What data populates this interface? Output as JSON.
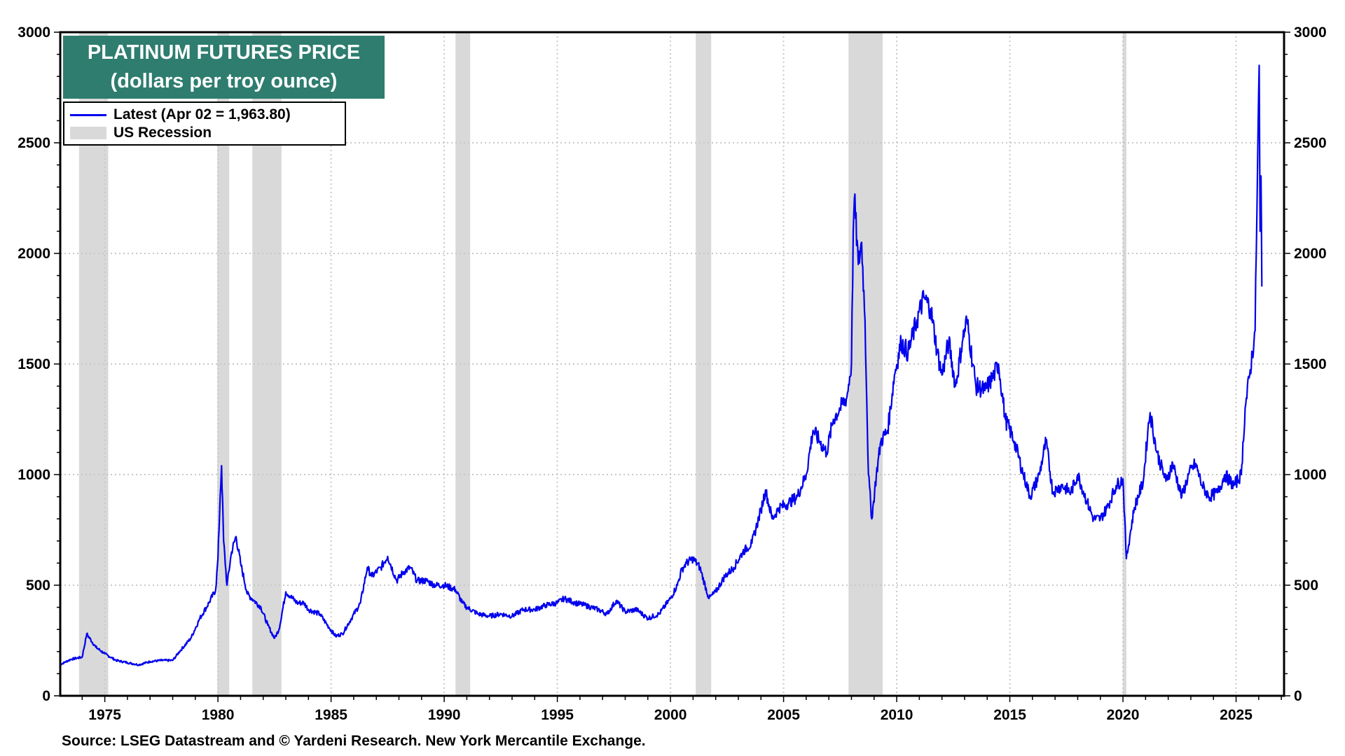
{
  "chart_data": {
    "type": "line",
    "title": "PLATINUM FUTURES PRICE",
    "subtitle": "(dollars per troy ounce)",
    "xlim": [
      1973.03,
      2027.12
    ],
    "ylim": [
      0,
      3000
    ],
    "x_ticks": [
      1975,
      1980,
      1985,
      1990,
      1995,
      2000,
      2005,
      2010,
      2015,
      2020,
      2025
    ],
    "y_ticks": [
      0,
      500,
      1000,
      1500,
      2000,
      2500,
      3000
    ],
    "grid": true,
    "y_axis_both_sides": true,
    "legend_placement": "top-left",
    "legend": [
      {
        "label": "Latest (Apr 02 = 1,963.80)",
        "color": "#0000ee",
        "kind": "line"
      },
      {
        "label": "US Recession",
        "color": "#d9d9d9",
        "kind": "shade"
      }
    ],
    "recessions": [
      [
        1973.86,
        1975.15
      ],
      [
        1979.97,
        1980.5
      ],
      [
        1981.52,
        1982.81
      ],
      [
        1990.5,
        1991.15
      ],
      [
        2001.12,
        2001.8
      ],
      [
        2007.87,
        2009.38
      ],
      [
        2019.99,
        2020.15
      ]
    ],
    "series": [
      {
        "color": "#0000ee",
        "x": [
          1973.0,
          1973.5,
          1974.0,
          1974.2,
          1974.6,
          1975.0,
          1975.5,
          1976.0,
          1976.5,
          1977.0,
          1977.5,
          1978.0,
          1978.3,
          1978.8,
          1979.2,
          1979.6,
          1979.9,
          1980.0,
          1980.1,
          1980.16,
          1980.25,
          1980.4,
          1980.6,
          1980.8,
          1981.0,
          1981.3,
          1981.6,
          1981.9,
          1982.2,
          1982.5,
          1982.7,
          1983.0,
          1983.2,
          1983.5,
          1983.8,
          1984.0,
          1984.5,
          1984.9,
          1985.2,
          1985.5,
          1985.9,
          1986.3,
          1986.6,
          1986.8,
          1987.2,
          1987.5,
          1987.9,
          1988.2,
          1988.5,
          1988.8,
          1989.2,
          1989.6,
          1990.0,
          1990.5,
          1990.8,
          1991.0,
          1991.5,
          1992.0,
          1992.5,
          1993.0,
          1993.5,
          1994.0,
          1994.5,
          1995.0,
          1995.3,
          1995.8,
          1996.2,
          1996.8,
          1997.2,
          1997.6,
          1998.0,
          1998.5,
          1999.0,
          1999.5,
          2000.0,
          2000.3,
          2000.5,
          2000.7,
          2001.0,
          2001.3,
          2001.7,
          2002.0,
          2002.4,
          2002.8,
          2003.2,
          2003.6,
          2004.0,
          2004.2,
          2004.5,
          2004.8,
          2005.2,
          2005.6,
          2006.0,
          2006.3,
          2006.6,
          2006.9,
          2007.2,
          2007.5,
          2007.8,
          2008.0,
          2008.08,
          2008.13,
          2008.3,
          2008.45,
          2008.6,
          2008.75,
          2008.9,
          2009.1,
          2009.3,
          2009.6,
          2009.9,
          2010.2,
          2010.5,
          2010.9,
          2011.2,
          2011.5,
          2011.8,
          2012.0,
          2012.3,
          2012.6,
          2012.9,
          2013.1,
          2013.5,
          2013.9,
          2014.3,
          2014.5,
          2014.8,
          2015.2,
          2015.6,
          2015.9,
          2016.3,
          2016.6,
          2016.9,
          2017.3,
          2017.7,
          2018.0,
          2018.4,
          2018.7,
          2019.0,
          2019.3,
          2019.7,
          2020.0,
          2020.15,
          2020.5,
          2020.9,
          2021.1,
          2021.2,
          2021.5,
          2021.9,
          2022.2,
          2022.6,
          2022.9,
          2023.2,
          2023.5,
          2023.8,
          2024.2,
          2024.5,
          2024.9,
          2025.23,
          2025.4,
          2025.6,
          2025.84,
          2025.95,
          2026.02,
          2026.06,
          2026.1,
          2026.14
        ],
        "y": [
          140,
          165,
          175,
          280,
          220,
          190,
          160,
          150,
          140,
          155,
          160,
          160,
          200,
          260,
          350,
          420,
          480,
          620,
          900,
          1040,
          700,
          500,
          650,
          720,
          600,
          460,
          430,
          400,
          320,
          260,
          300,
          470,
          450,
          420,
          420,
          390,
          370,
          310,
          270,
          280,
          350,
          420,
          580,
          540,
          580,
          630,
          520,
          560,
          580,
          520,
          520,
          500,
          500,
          480,
          420,
          400,
          370,
          360,
          370,
          360,
          390,
          390,
          410,
          420,
          440,
          420,
          410,
          390,
          370,
          430,
          380,
          390,
          350,
          370,
          440,
          500,
          570,
          600,
          620,
          580,
          440,
          470,
          540,
          580,
          650,
          690,
          840,
          930,
          800,
          850,
          870,
          900,
          1000,
          1200,
          1150,
          1100,
          1250,
          1300,
          1350,
          1500,
          2100,
          2250,
          1950,
          2050,
          1700,
          1000,
          800,
          1000,
          1150,
          1200,
          1450,
          1600,
          1550,
          1700,
          1800,
          1750,
          1550,
          1450,
          1600,
          1400,
          1600,
          1700,
          1400,
          1380,
          1450,
          1500,
          1250,
          1150,
          1000,
          900,
          1000,
          1150,
          920,
          950,
          920,
          1000,
          880,
          800,
          800,
          850,
          950,
          980,
          620,
          850,
          970,
          1200,
          1280,
          1100,
          970,
          1050,
          900,
          1000,
          1050,
          950,
          900,
          920,
          1000,
          950,
          1000,
          1300,
          1450,
          1650,
          2400,
          2850,
          2100,
          2350,
          1850
        ]
      }
    ]
  },
  "source": "Source: LSEG Datastream and © Yardeni Research. New York Mercantile Exchange."
}
